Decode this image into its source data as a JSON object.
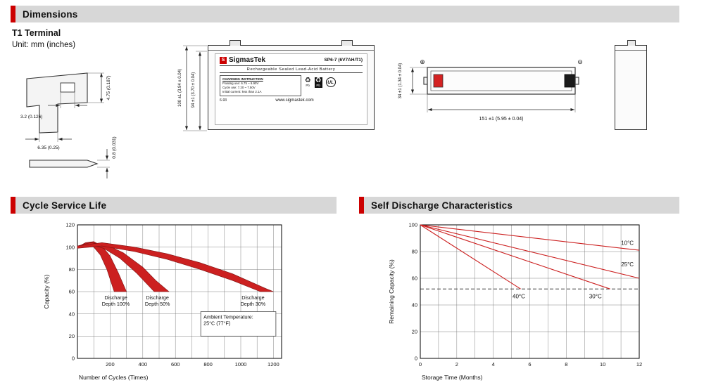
{
  "headers": {
    "dimensions": "Dimensions",
    "cycle": "Cycle Service Life",
    "self_discharge": "Self Discharge Characteristics"
  },
  "dimensions_section": {
    "terminal_type": "T1 Terminal",
    "unit": "Unit: mm (inches)",
    "terminal_dims": {
      "height": "4.75 (0.187)",
      "hole": "3.2 (0.126)",
      "width": "6.35 (0.25)",
      "thickness": "0.8 (0.031)"
    },
    "front_view": {
      "overall_height": "100 ±1 (3.94 ± 0.04)",
      "container_height": "94 ±1 (3.70 ± 0.04)"
    },
    "top_view": {
      "length": "151 ±1 (5.95 ± 0.04)",
      "width": "34 ±1 (1.34 ± 0.04)",
      "positive_mark": "⊕",
      "negative_mark": "⊖"
    },
    "battery_label": {
      "logo_letter": "S",
      "brand": "SigmasTek",
      "model": "SP6-7 (6V7AH/T1)",
      "subtitle": "Rechargeable Sealed Lead-Acid Battery",
      "charging_title": "CHARGING INSTRUCTION",
      "charging_line1": "Floating use: 6.75 ~ 6.90V",
      "charging_line2": "Cycle use: 7.20 ~ 7.50V",
      "charging_line3": "Initial current: less than 2.1A",
      "code": "6-93",
      "website": "www.sigmastek.com",
      "recycle_icon": "♻",
      "pb_label": "Pb",
      "ul_label": "UL"
    }
  },
  "chart_data": [
    {
      "id": "cycle-life",
      "type": "area",
      "title": "Cycle Service Life",
      "xlabel": "Number of Cycles (Times)",
      "ylabel": "Capacity (%)",
      "xlim": [
        0,
        1250
      ],
      "ylim": [
        0,
        120
      ],
      "xticks": [
        200,
        400,
        600,
        800,
        1000,
        1200
      ],
      "yticks": [
        0,
        20,
        40,
        60,
        80,
        100,
        120
      ],
      "xgrid_step": 100,
      "ygrid_step": 20,
      "margin": {
        "l": 55,
        "r": 85,
        "t": 12,
        "b": 38
      },
      "color": "#cc2020",
      "bands": [
        {
          "name": "Discharge Depth 100%",
          "upper": [
            [
              0,
              100
            ],
            [
              50,
              104
            ],
            [
              100,
              105
            ],
            [
              150,
              101
            ],
            [
              200,
              92
            ],
            [
              250,
              77
            ],
            [
              300,
              60
            ]
          ],
          "lower": [
            [
              0,
              99
            ],
            [
              50,
              102
            ],
            [
              100,
              100
            ],
            [
              140,
              93
            ],
            [
              180,
              80
            ],
            [
              225,
              60
            ]
          ]
        },
        {
          "name": "Discharge Depth 50%",
          "upper": [
            [
              0,
              101
            ],
            [
              80,
              104
            ],
            [
              180,
              102
            ],
            [
              280,
              95
            ],
            [
              400,
              82
            ],
            [
              480,
              70
            ],
            [
              560,
              60
            ]
          ],
          "lower": [
            [
              0,
              99
            ],
            [
              80,
              102
            ],
            [
              160,
              99
            ],
            [
              260,
              90
            ],
            [
              360,
              77
            ],
            [
              470,
              60
            ]
          ]
        },
        {
          "name": "Discharge Depth 30%",
          "upper": [
            [
              0,
              101
            ],
            [
              150,
              104
            ],
            [
              350,
              100
            ],
            [
              550,
              94
            ],
            [
              750,
              86
            ],
            [
              950,
              76
            ],
            [
              1150,
              63
            ],
            [
              1200,
              60
            ]
          ],
          "lower": [
            [
              0,
              99
            ],
            [
              150,
              101
            ],
            [
              350,
              96
            ],
            [
              550,
              89
            ],
            [
              750,
              80
            ],
            [
              950,
              70
            ],
            [
              1120,
              60
            ]
          ]
        }
      ],
      "labels": [
        {
          "lines": [
            "Discharge",
            "Depth 100%"
          ],
          "x": 235,
          "y": 53
        },
        {
          "lines": [
            "Discharge",
            "Depth 50%"
          ],
          "x": 490,
          "y": 53
        },
        {
          "lines": [
            "Discharge",
            "Depth 30%"
          ],
          "x": 1075,
          "y": 53
        }
      ],
      "box": {
        "x1": 755,
        "y1": 42,
        "x2": 1215,
        "y2": 20,
        "lines": [
          "Ambient Temperature:",
          "25°C (77°F)"
        ]
      }
    },
    {
      "id": "self-discharge",
      "type": "line",
      "title": "Self Discharge Characteristics",
      "xlabel": "Storage Time (Months)",
      "ylabel": "Remaining Capacity (%)",
      "xlim": [
        0,
        12
      ],
      "ylim": [
        0,
        100
      ],
      "xticks": [
        0,
        2,
        4,
        6,
        8,
        10,
        12
      ],
      "yticks": [
        0,
        20,
        40,
        60,
        80,
        100
      ],
      "xgrid_step": 1,
      "ygrid_step": 20,
      "margin": {
        "l": 52,
        "r": 57,
        "t": 12,
        "b": 38
      },
      "dashed_y": 52,
      "color": "#cc2020",
      "series": [
        {
          "name": "10°C",
          "points": [
            [
              0,
              100
            ],
            [
              12,
              81
            ]
          ],
          "label": {
            "x": 11.35,
            "y": 85
          }
        },
        {
          "name": "25°C",
          "points": [
            [
              0,
              100
            ],
            [
              12,
              60
            ]
          ],
          "label": {
            "x": 11.35,
            "y": 69
          }
        },
        {
          "name": "30°C",
          "points": [
            [
              0,
              100
            ],
            [
              10.4,
              52
            ]
          ],
          "label": {
            "x": 9.6,
            "y": 45
          }
        },
        {
          "name": "40°C",
          "points": [
            [
              0,
              100
            ],
            [
              5.5,
              52
            ]
          ],
          "label": {
            "x": 5.4,
            "y": 45
          }
        }
      ]
    }
  ]
}
